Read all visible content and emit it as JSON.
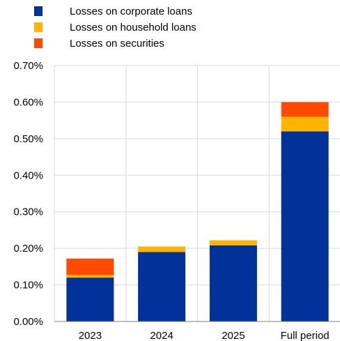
{
  "chart_data": {
    "type": "bar",
    "stacked": true,
    "categories": [
      "2023",
      "2024",
      "2025",
      "Full period"
    ],
    "series": [
      {
        "name": "Losses on corporate loans",
        "color": "#003299",
        "values": [
          0.12,
          0.19,
          0.208,
          0.52
        ]
      },
      {
        "name": "Losses on household loans",
        "color": "#FFB400",
        "values": [
          0.007,
          0.015,
          0.014,
          0.04
        ]
      },
      {
        "name": "Losses on securities",
        "color": "#FF4B00",
        "values": [
          0.045,
          0.0,
          0.0,
          0.04
        ]
      }
    ],
    "yticks": [
      "0.00%",
      "0.10%",
      "0.20%",
      "0.30%",
      "0.40%",
      "0.50%",
      "0.60%",
      "0.70%"
    ],
    "ylim": [
      0,
      0.7
    ],
    "grid": true,
    "legend_position": "top-left"
  }
}
